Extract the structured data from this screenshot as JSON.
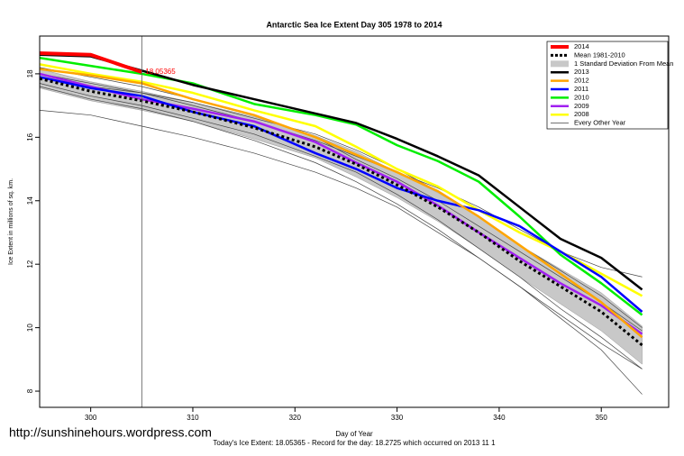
{
  "chart_data": {
    "type": "line",
    "title": "Antarctic Sea Ice Extent Day 305 1978 to 2014",
    "x_label": "Day of Year",
    "y_label": "Ice Extent in millions of sq. km.",
    "footnote": "Today's Ice Extent: 18.05365  - Record for the day: 18.2725 which occurred on 2013 11 1",
    "watermark": "http://sunshinehours.wordpress.com",
    "x": [
      295,
      300,
      305,
      310,
      316,
      322,
      326,
      330,
      334,
      338,
      342,
      346,
      350,
      354
    ],
    "xlim": [
      295,
      356.6
    ],
    "ylim": [
      7.49,
      19.19
    ],
    "xticks": [
      300,
      310,
      320,
      330,
      340,
      350
    ],
    "yticks": [
      8,
      10,
      12,
      14,
      16,
      18
    ],
    "vline": 305,
    "legend": "top-right",
    "series": [
      {
        "name": "2014",
        "color": "#ff0000",
        "width": 4,
        "values": [
          18.65,
          18.6,
          18.05365,
          null,
          null,
          null,
          null,
          null,
          null,
          null,
          null,
          null,
          null,
          null
        ],
        "value_labels": [
          null,
          null,
          "18.05365",
          null,
          null,
          null,
          null,
          null,
          null,
          null,
          null,
          null,
          null,
          null
        ]
      },
      {
        "name": "Mean 1981-2010",
        "color": "#000000",
        "width": 3,
        "dash": true,
        "values": [
          17.85,
          17.45,
          17.15,
          16.8,
          16.3,
          15.7,
          15.15,
          14.5,
          13.8,
          13.0,
          12.1,
          11.3,
          10.5,
          9.45
        ]
      },
      {
        "name": "1 Standard Deviation From Mean",
        "color": "#c8c8c8",
        "upper": [
          18.15,
          17.75,
          17.45,
          17.1,
          16.65,
          16.05,
          15.55,
          14.9,
          14.25,
          13.5,
          12.6,
          11.85,
          11.1,
          10.05
        ],
        "lower": [
          17.55,
          17.15,
          16.85,
          16.5,
          15.95,
          15.35,
          14.75,
          14.1,
          13.35,
          12.5,
          11.6,
          10.75,
          9.9,
          8.85
        ]
      },
      {
        "name": "2013",
        "color": "#000000",
        "width": 2.5,
        "values": [
          18.6,
          18.55,
          18.1,
          17.65,
          17.2,
          16.75,
          16.45,
          15.95,
          15.4,
          14.8,
          13.8,
          12.8,
          12.2,
          11.2
        ]
      },
      {
        "name": "2012",
        "color": "#ffa500",
        "width": 2.5,
        "values": [
          18.15,
          17.95,
          17.7,
          17.2,
          16.7,
          16.0,
          15.45,
          14.9,
          14.3,
          13.5,
          12.6,
          11.7,
          10.8,
          9.7
        ]
      },
      {
        "name": "2011",
        "color": "#0000ff",
        "width": 2.5,
        "values": [
          17.9,
          17.55,
          17.3,
          16.8,
          16.35,
          15.5,
          15.0,
          14.4,
          14.0,
          13.7,
          13.2,
          12.4,
          11.6,
          10.5
        ]
      },
      {
        "name": "2010",
        "color": "#00ee00",
        "width": 2.5,
        "values": [
          18.5,
          18.25,
          18.0,
          17.7,
          17.05,
          16.7,
          16.4,
          15.75,
          15.25,
          14.6,
          13.5,
          12.3,
          11.4,
          10.4
        ]
      },
      {
        "name": "2009",
        "color": "#a020f0",
        "width": 2.5,
        "values": [
          18.0,
          17.6,
          17.2,
          16.9,
          16.5,
          15.85,
          15.2,
          14.6,
          13.85,
          13.0,
          12.2,
          11.4,
          10.7,
          9.8
        ]
      },
      {
        "name": "2008",
        "color": "#ffff00",
        "width": 2.5,
        "values": [
          18.3,
          18.0,
          17.75,
          17.4,
          16.85,
          16.35,
          15.7,
          15.0,
          14.45,
          13.7,
          13.0,
          12.4,
          11.7,
          11.0
        ]
      },
      {
        "name": "Every Other Year",
        "color": "#444444",
        "width": 0.7,
        "lines": [
          [
            16.85,
            16.7,
            16.35,
            16.0,
            15.5,
            14.9,
            14.4,
            13.8,
            13.0,
            12.2,
            11.3,
            10.4,
            9.5,
            8.7
          ],
          [
            17.6,
            17.2,
            16.9,
            16.5,
            15.9,
            15.2,
            14.6,
            13.9,
            13.1,
            12.2,
            11.3,
            10.3,
            9.3,
            7.9
          ],
          [
            17.9,
            17.6,
            17.4,
            17.1,
            16.6,
            16.1,
            15.6,
            15.0,
            14.3,
            13.5,
            12.6,
            11.8,
            11.0,
            10.0
          ],
          [
            18.2,
            17.9,
            17.6,
            17.2,
            16.7,
            16.0,
            15.3,
            14.7,
            14.0,
            13.2,
            12.4,
            11.6,
            10.8,
            9.9
          ],
          [
            17.7,
            17.3,
            17.0,
            16.6,
            16.1,
            15.4,
            14.9,
            14.2,
            13.4,
            12.5,
            11.6,
            10.6,
            9.7,
            8.7
          ],
          [
            18.0,
            17.7,
            17.4,
            17.0,
            16.5,
            15.9,
            15.4,
            14.9,
            14.4,
            13.8,
            13.1,
            12.4,
            11.9,
            11.6
          ]
        ]
      }
    ]
  }
}
